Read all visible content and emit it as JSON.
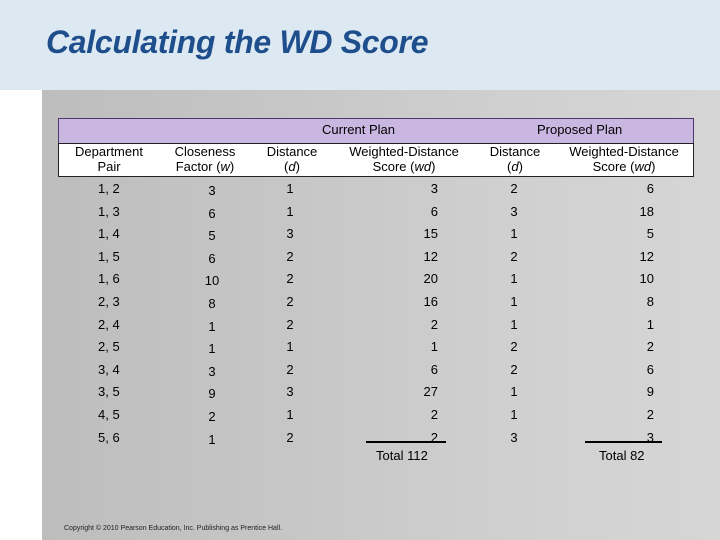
{
  "title": "Calculating the WD Score",
  "groups": {
    "current": "Current Plan",
    "proposed": "Proposed Plan"
  },
  "columns": {
    "pair": [
      "Department",
      "Pair"
    ],
    "closeness": [
      "Closeness",
      "Factor (w)"
    ],
    "distance_cur": [
      "Distance",
      "(d)"
    ],
    "wd_cur": [
      "Weighted-Distance",
      "Score (wd)"
    ],
    "distance_prop": [
      "Distance",
      "(d)"
    ],
    "wd_prop": [
      "Weighted-Distance",
      "Score (wd)"
    ]
  },
  "rows": [
    {
      "pair": "1, 2",
      "w": "3",
      "d_cur": "1",
      "wd_cur": "3",
      "d_prop": "2",
      "wd_prop": "6"
    },
    {
      "pair": "1, 3",
      "w": "6",
      "d_cur": "1",
      "wd_cur": "6",
      "d_prop": "3",
      "wd_prop": "18"
    },
    {
      "pair": "1, 4",
      "w": "5",
      "d_cur": "3",
      "wd_cur": "15",
      "d_prop": "1",
      "wd_prop": "5"
    },
    {
      "pair": "1, 5",
      "w": "6",
      "d_cur": "2",
      "wd_cur": "12",
      "d_prop": "2",
      "wd_prop": "12"
    },
    {
      "pair": "1, 6",
      "w": "10",
      "d_cur": "2",
      "wd_cur": "20",
      "d_prop": "1",
      "wd_prop": "10"
    },
    {
      "pair": "2, 3",
      "w": "8",
      "d_cur": "2",
      "wd_cur": "16",
      "d_prop": "1",
      "wd_prop": "8"
    },
    {
      "pair": "2, 4",
      "w": "1",
      "d_cur": "2",
      "wd_cur": "2",
      "d_prop": "1",
      "wd_prop": "1"
    },
    {
      "pair": "2, 5",
      "w": "1",
      "d_cur": "1",
      "wd_cur": "1",
      "d_prop": "2",
      "wd_prop": "2"
    },
    {
      "pair": "3, 4",
      "w": "3",
      "d_cur": "2",
      "wd_cur": "6",
      "d_prop": "2",
      "wd_prop": "6"
    },
    {
      "pair": "3, 5",
      "w": "9",
      "d_cur": "3",
      "wd_cur": "27",
      "d_prop": "1",
      "wd_prop": "9"
    },
    {
      "pair": "4, 5",
      "w": "2",
      "d_cur": "1",
      "wd_cur": "2",
      "d_prop": "1",
      "wd_prop": "2"
    },
    {
      "pair": "5, 6",
      "w": "1",
      "d_cur": "2",
      "wd_cur": "2",
      "d_prop": "3",
      "wd_prop": "3"
    }
  ],
  "totals": {
    "current": "Total 112",
    "proposed": "Total 82"
  },
  "copyright": "Copyright © 2010 Pearson Education, Inc. Publishing as Prentice Hall."
}
